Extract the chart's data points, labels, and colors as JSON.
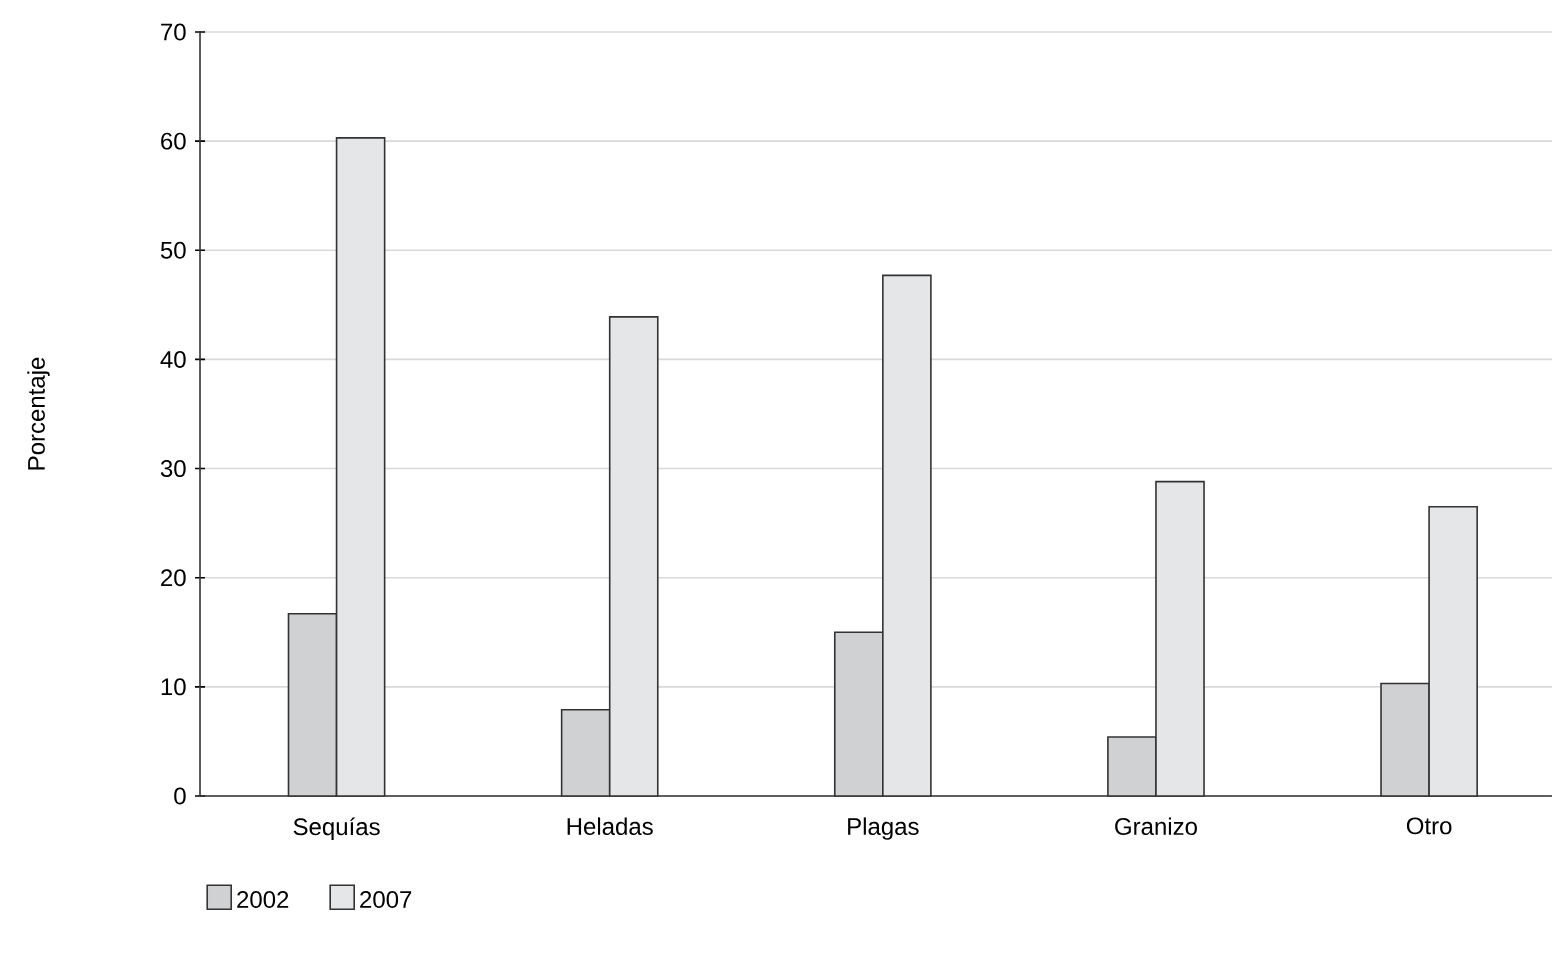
{
  "chart_data": {
    "type": "bar",
    "ylabel": "Porcentaje",
    "categories": [
      "Sequías",
      "Heladas",
      "Plagas",
      "Granizo",
      "Otro"
    ],
    "series": [
      {
        "name": "2002",
        "color": "#d0d1d3",
        "values": [
          16.7,
          7.9,
          15.0,
          5.4,
          10.3
        ]
      },
      {
        "name": "2007",
        "color": "#e5e6e8",
        "values": [
          60.3,
          43.9,
          47.7,
          28.8,
          26.5
        ]
      }
    ],
    "ylim": [
      0,
      70
    ],
    "yticks": [
      0,
      10,
      20,
      30,
      40,
      50,
      60,
      70
    ],
    "grid": "y",
    "legend": "bottom"
  }
}
